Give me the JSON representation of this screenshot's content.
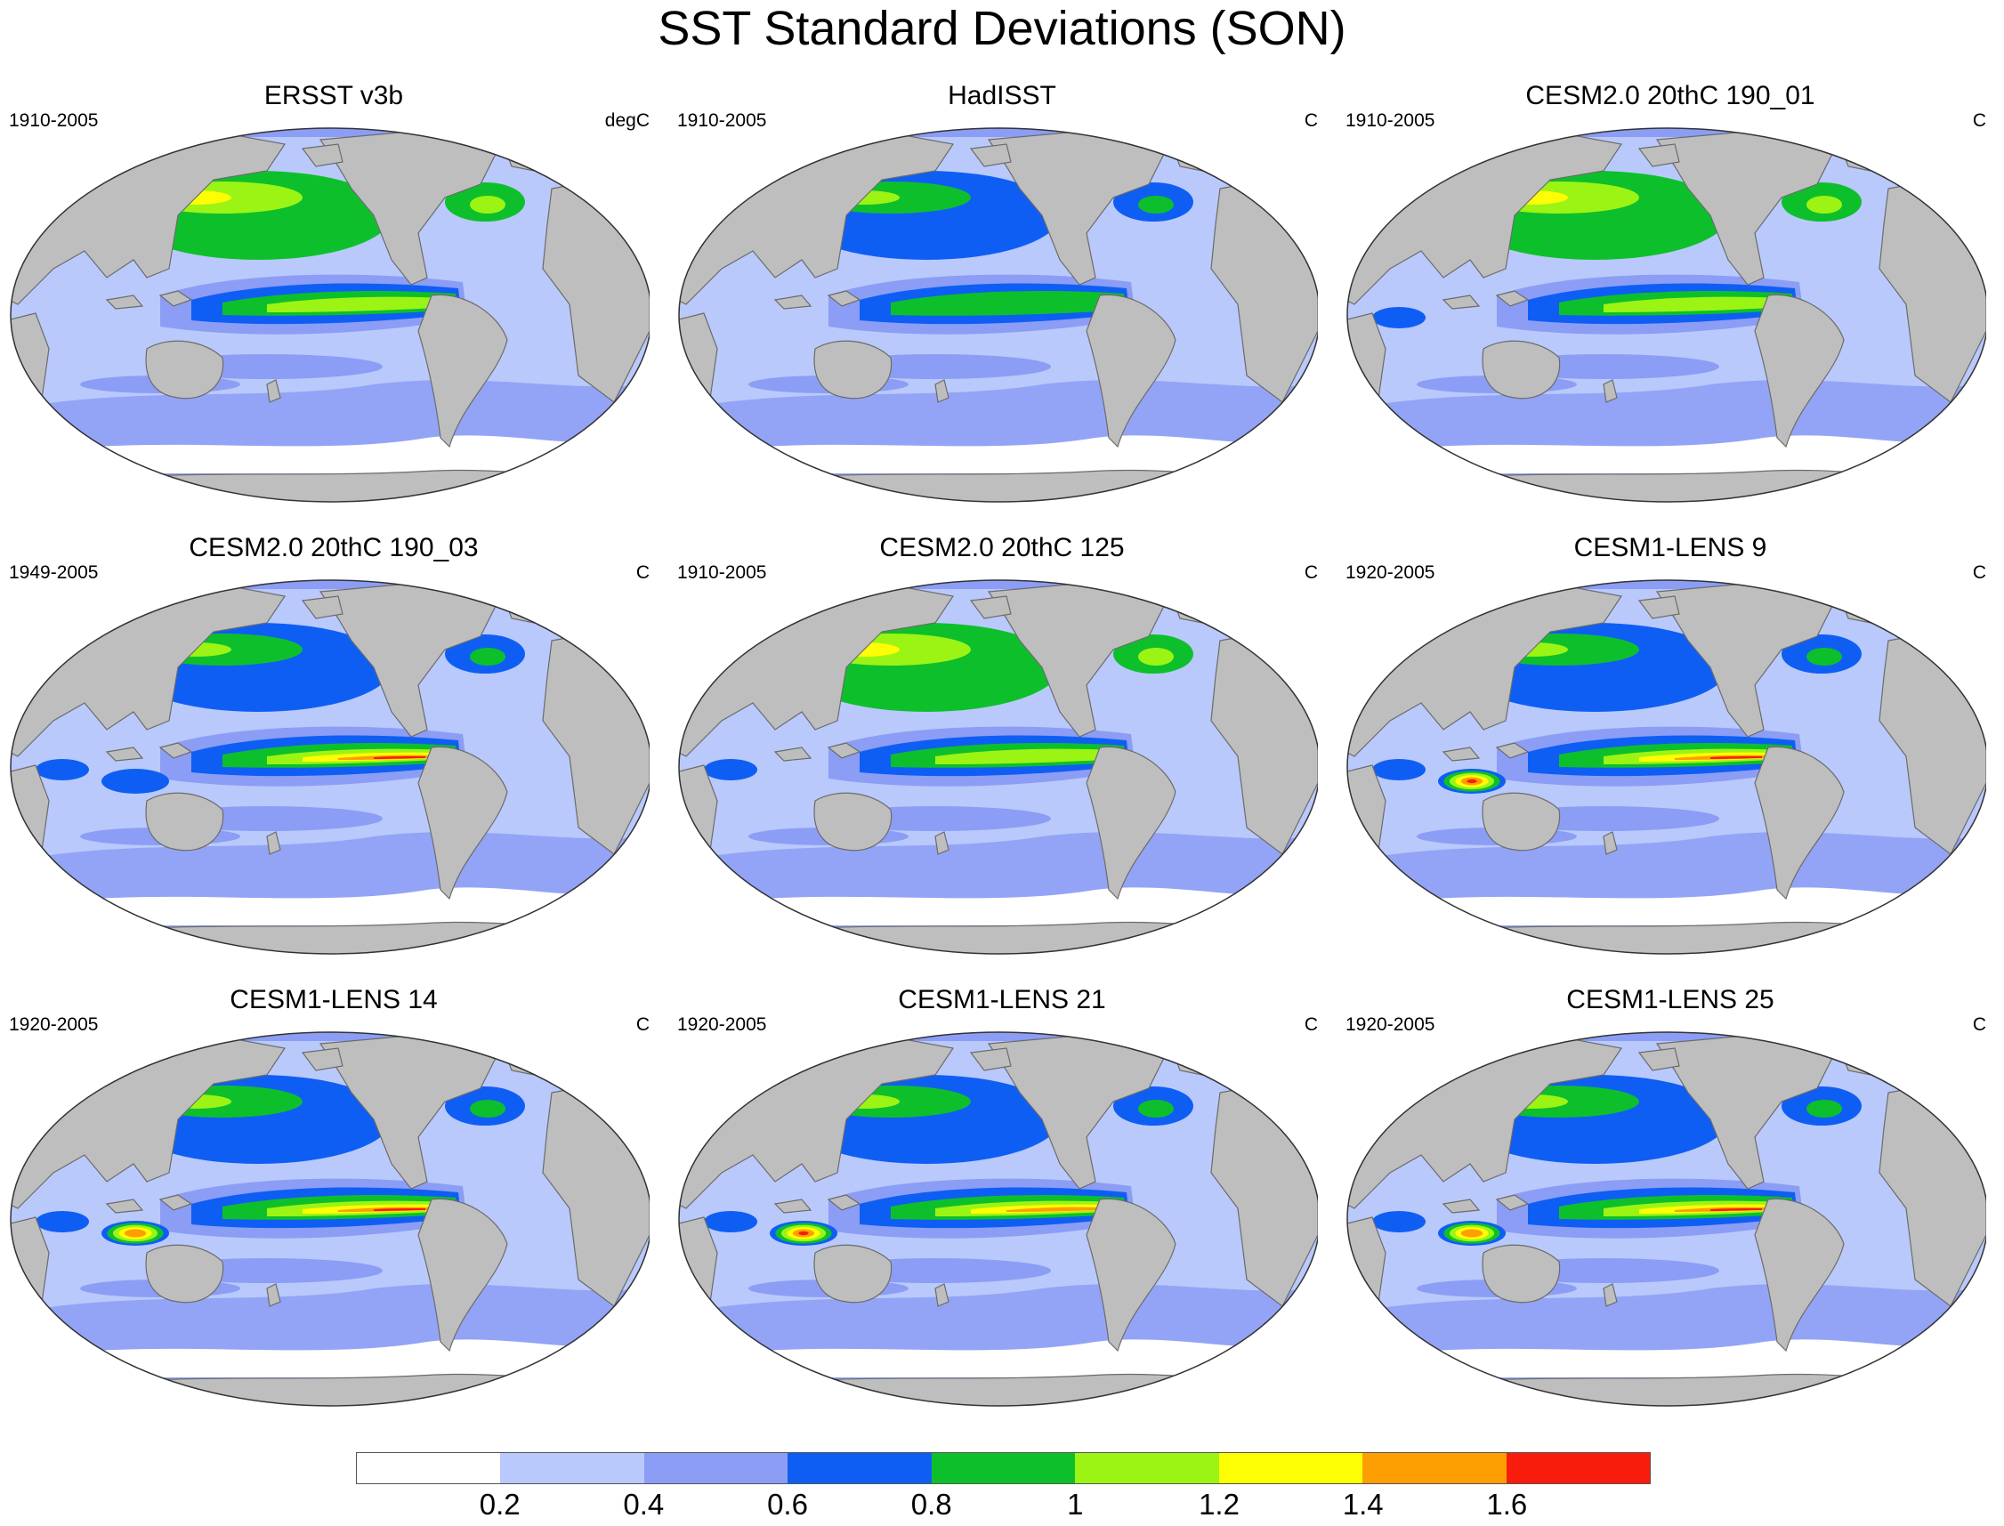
{
  "title": "SST Standard Deviations (SON)",
  "colors": {
    "land": "#bebebe",
    "levels": [
      "#ffffff",
      "#b9c9fb",
      "#8c9df5",
      "#0f5ef4",
      "#0dc02b",
      "#9cf414",
      "#fdfd03",
      "#fd9e03",
      "#f81c0d"
    ]
  },
  "panels": [
    {
      "title": "ERSST v3b",
      "period": "1910-2005",
      "units": "degC",
      "enso": 1.0,
      "npac": 1.0,
      "indo": 0.0,
      "wp": 0.0
    },
    {
      "title": "HadISST",
      "period": "1910-2005",
      "units": "C",
      "enso": 0.9,
      "npac": 0.8,
      "indo": 0.0,
      "wp": 0.0
    },
    {
      "title": "CESM2.0 20thC 190_01",
      "period": "1910-2005",
      "units": "C",
      "enso": 1.0,
      "npac": 1.0,
      "indo": 0.4,
      "wp": 0.6
    },
    {
      "title": "CESM2.0 20thC 190_03",
      "period": "1949-2005",
      "units": "C",
      "enso": 1.6,
      "npac": 0.8,
      "indo": 0.6,
      "wp": 0.7
    },
    {
      "title": "CESM2.0 20thC 125",
      "period": "1910-2005",
      "units": "C",
      "enso": 1.0,
      "npac": 1.0,
      "indo": 0.4,
      "wp": 0.6
    },
    {
      "title": "CESM1-LENS 9",
      "period": "1920-2005",
      "units": "C",
      "enso": 1.6,
      "npac": 0.8,
      "indo": 1.6,
      "wp": 0.6
    },
    {
      "title": "CESM1-LENS 14",
      "period": "1920-2005",
      "units": "C",
      "enso": 1.6,
      "npac": 0.8,
      "indo": 1.4,
      "wp": 0.6
    },
    {
      "title": "CESM1-LENS 21",
      "period": "1920-2005",
      "units": "C",
      "enso": 1.4,
      "npac": 0.8,
      "indo": 1.6,
      "wp": 0.6
    },
    {
      "title": "CESM1-LENS 25",
      "period": "1920-2005",
      "units": "C",
      "enso": 1.6,
      "npac": 0.8,
      "indo": 1.4,
      "wp": 0.6
    }
  ],
  "colorbar": {
    "labels": [
      "0.2",
      "0.4",
      "0.6",
      "0.8",
      "1",
      "1.2",
      "1.4",
      "1.6"
    ]
  }
}
